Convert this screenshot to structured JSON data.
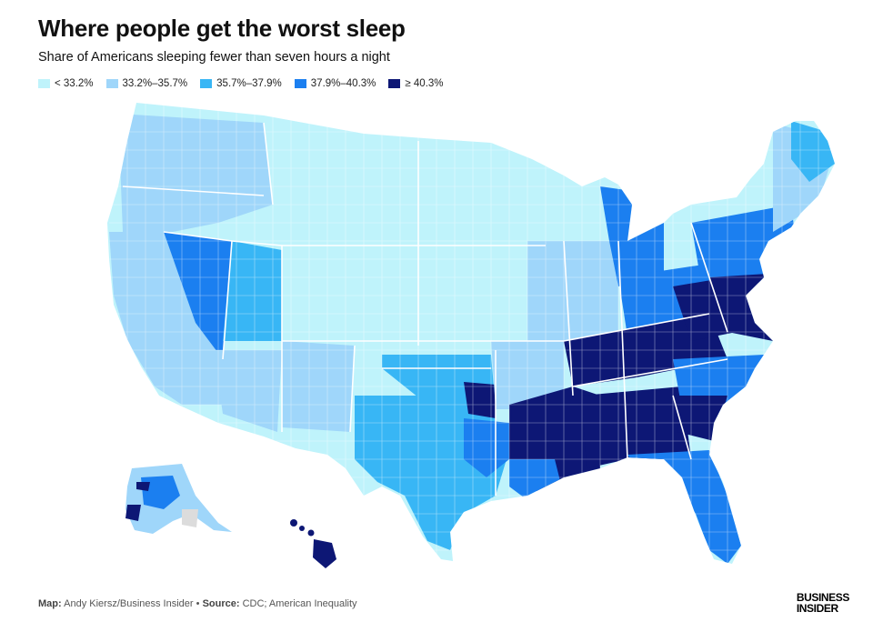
{
  "header": {
    "title": "Where people get the worst sleep",
    "subtitle": "Share of Americans sleeping fewer than seven hours a night"
  },
  "legend": [
    {
      "label": "< 33.2%",
      "color": "#bff3fb"
    },
    {
      "label": "33.2%–35.7%",
      "color": "#9fd6fa"
    },
    {
      "label": "35.7%–37.9%",
      "color": "#38b6f5"
    },
    {
      "label": "37.9%–40.3%",
      "color": "#1b7ff0"
    },
    {
      "label": "≥ 40.3%",
      "color": "#0d1775"
    }
  ],
  "footer": {
    "map_label": "Map:",
    "map_credit": "Andy Kiersz/Business Insider",
    "separator": "•",
    "source_label": "Source:",
    "source_text": "CDC; American Inequality"
  },
  "brand": {
    "line1": "BUSINESS",
    "line2": "INSIDER"
  },
  "colors": {
    "lt": "#bff3fb",
    "l1": "#9fd6fa",
    "l2": "#38b6f5",
    "l3": "#1b7ff0",
    "l4": "#0d1775",
    "nodata": "#dcdcdc",
    "border": "#ffffff"
  }
}
